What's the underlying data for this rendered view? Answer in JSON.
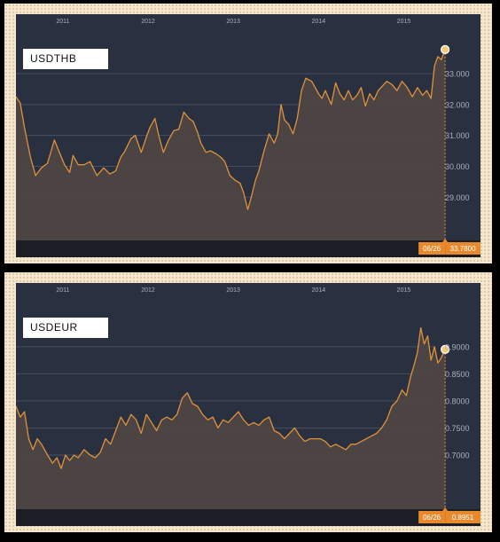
{
  "colors": {
    "background": "#293141",
    "line": "#e0913a",
    "area": "#4d4643",
    "axis_text": "#a9b0bc",
    "grid": "#465062",
    "footer": "#1b1e25",
    "badge": "#e7892c"
  },
  "chart_data": [
    {
      "type": "area",
      "label": "USDTHB",
      "x_tick_labels": [
        "2011",
        "2012",
        "2013",
        "2014",
        "2015"
      ],
      "x_range": [
        2010.45,
        2015.9
      ],
      "y_tick_labels": [
        "29.000",
        "30.000",
        "31.000",
        "32.000",
        "33.000"
      ],
      "y_ticks": [
        29,
        30,
        31,
        32,
        33
      ],
      "y_range": [
        27.6,
        34.35
      ],
      "grid": true,
      "last_point": {
        "x": 2015.485,
        "y": 33.78
      },
      "current_date": "06/26",
      "current_value": "33.7800",
      "x": [
        2010.45,
        2010.5,
        2010.55,
        2010.62,
        2010.68,
        2010.75,
        2010.82,
        2010.9,
        2010.96,
        2011.02,
        2011.08,
        2011.12,
        2011.18,
        2011.25,
        2011.32,
        2011.4,
        2011.48,
        2011.55,
        2011.62,
        2011.68,
        2011.72,
        2011.8,
        2011.85,
        2011.92,
        2011.98,
        2012.02,
        2012.08,
        2012.13,
        2012.18,
        2012.24,
        2012.3,
        2012.36,
        2012.42,
        2012.48,
        2012.53,
        2012.58,
        2012.62,
        2012.68,
        2012.73,
        2012.8,
        2012.85,
        2012.9,
        2012.96,
        2013.02,
        2013.08,
        2013.12,
        2013.17,
        2013.21,
        2013.26,
        2013.3,
        2013.36,
        2013.42,
        2013.48,
        2013.52,
        2013.56,
        2013.6,
        2013.65,
        2013.7,
        2013.75,
        2013.8,
        2013.85,
        2013.92,
        2013.96,
        2014.0,
        2014.04,
        2014.08,
        2014.15,
        2014.2,
        2014.25,
        2014.3,
        2014.35,
        2014.4,
        2014.45,
        2014.5,
        2014.55,
        2014.6,
        2014.65,
        2014.7,
        2014.75,
        2014.8,
        2014.86,
        2014.92,
        2014.98,
        2015.04,
        2015.1,
        2015.16,
        2015.22,
        2015.27,
        2015.32,
        2015.36,
        2015.4,
        2015.44,
        2015.485
      ],
      "y": [
        32.25,
        32.05,
        31.25,
        30.3,
        29.7,
        29.95,
        30.1,
        30.85,
        30.45,
        30.05,
        29.8,
        30.35,
        30.05,
        30.05,
        30.15,
        29.7,
        29.95,
        29.75,
        29.85,
        30.3,
        30.45,
        30.9,
        31.0,
        30.45,
        30.95,
        31.25,
        31.55,
        30.95,
        30.45,
        30.85,
        31.15,
        31.2,
        31.75,
        31.55,
        31.45,
        31.1,
        30.75,
        30.45,
        30.5,
        30.4,
        30.3,
        30.15,
        29.7,
        29.55,
        29.45,
        29.15,
        28.6,
        29.0,
        29.55,
        29.85,
        30.5,
        31.05,
        30.75,
        31.05,
        32.0,
        31.5,
        31.35,
        31.05,
        31.55,
        32.45,
        32.85,
        32.75,
        32.55,
        32.35,
        32.2,
        32.45,
        32.0,
        32.7,
        32.35,
        32.15,
        32.45,
        32.15,
        32.3,
        32.55,
        31.95,
        32.35,
        32.15,
        32.45,
        32.6,
        32.75,
        32.65,
        32.45,
        32.75,
        32.55,
        32.25,
        32.55,
        32.3,
        32.45,
        32.2,
        33.25,
        33.55,
        33.45,
        33.78
      ]
    },
    {
      "type": "area",
      "label": "USDEUR",
      "x_tick_labels": [
        "2011",
        "2012",
        "2013",
        "2014",
        "2015"
      ],
      "x_range": [
        2010.45,
        2015.9
      ],
      "y_tick_labels": [
        "0.7000",
        "0.7500",
        "0.8000",
        "0.8500",
        "0.9000"
      ],
      "y_ticks": [
        0.7,
        0.75,
        0.8,
        0.85,
        0.9
      ],
      "y_range": [
        0.6,
        0.985
      ],
      "grid": true,
      "last_point": {
        "x": 2015.485,
        "y": 0.8951
      },
      "current_date": "06/26",
      "current_value": "0.8951",
      "x": [
        2010.45,
        2010.5,
        2010.55,
        2010.6,
        2010.65,
        2010.7,
        2010.75,
        2010.82,
        2010.88,
        2010.93,
        2010.98,
        2011.03,
        2011.08,
        2011.13,
        2011.18,
        2011.25,
        2011.32,
        2011.38,
        2011.44,
        2011.5,
        2011.56,
        2011.62,
        2011.68,
        2011.74,
        2011.8,
        2011.86,
        2011.92,
        2011.98,
        2012.04,
        2012.1,
        2012.16,
        2012.22,
        2012.28,
        2012.34,
        2012.4,
        2012.46,
        2012.52,
        2012.58,
        2012.64,
        2012.7,
        2012.76,
        2012.82,
        2012.88,
        2012.94,
        2013.0,
        2013.06,
        2013.12,
        2013.18,
        2013.24,
        2013.3,
        2013.36,
        2013.42,
        2013.48,
        2013.54,
        2013.6,
        2013.66,
        2013.72,
        2013.78,
        2013.84,
        2013.9,
        2013.96,
        2014.02,
        2014.08,
        2014.14,
        2014.2,
        2014.26,
        2014.32,
        2014.38,
        2014.44,
        2014.5,
        2014.56,
        2014.62,
        2014.68,
        2014.74,
        2014.8,
        2014.86,
        2014.92,
        2014.98,
        2015.03,
        2015.08,
        2015.12,
        2015.16,
        2015.2,
        2015.24,
        2015.28,
        2015.32,
        2015.36,
        2015.4,
        2015.44,
        2015.485
      ],
      "y": [
        0.79,
        0.77,
        0.78,
        0.73,
        0.71,
        0.73,
        0.72,
        0.7,
        0.685,
        0.695,
        0.675,
        0.7,
        0.69,
        0.7,
        0.695,
        0.71,
        0.7,
        0.695,
        0.705,
        0.73,
        0.72,
        0.745,
        0.77,
        0.755,
        0.775,
        0.765,
        0.74,
        0.775,
        0.76,
        0.745,
        0.765,
        0.77,
        0.765,
        0.775,
        0.805,
        0.815,
        0.795,
        0.79,
        0.775,
        0.765,
        0.77,
        0.75,
        0.765,
        0.76,
        0.77,
        0.78,
        0.765,
        0.755,
        0.76,
        0.755,
        0.765,
        0.77,
        0.745,
        0.74,
        0.73,
        0.74,
        0.75,
        0.735,
        0.725,
        0.73,
        0.73,
        0.73,
        0.725,
        0.715,
        0.72,
        0.715,
        0.71,
        0.72,
        0.72,
        0.725,
        0.73,
        0.735,
        0.74,
        0.75,
        0.765,
        0.79,
        0.8,
        0.82,
        0.81,
        0.845,
        0.865,
        0.89,
        0.935,
        0.905,
        0.92,
        0.875,
        0.9,
        0.87,
        0.88,
        0.8951
      ]
    }
  ]
}
